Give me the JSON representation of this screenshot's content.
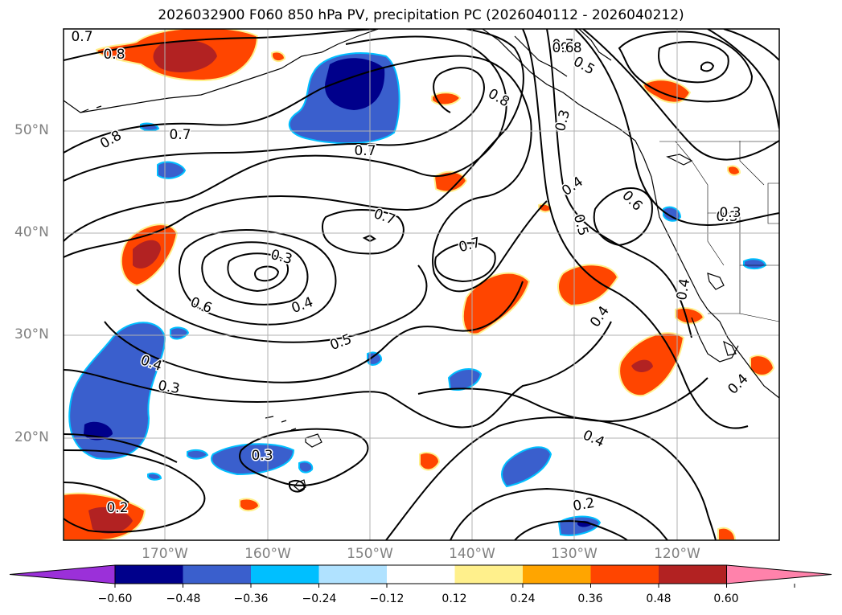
{
  "title": "2026032900 F060 850 hPa PV, precipitation PC (2026040112 - 2026040212)",
  "latitude_labels": [
    "50°N",
    "40°N",
    "30°N",
    "20°N"
  ],
  "longitude_labels": [
    "170°W",
    "160°W",
    "150°W",
    "140°W",
    "130°W",
    "120°W"
  ],
  "contour_labels": [
    "0.7",
    "0.8",
    "0.8",
    "0.7",
    "0.8",
    "0.7",
    "0.8",
    "0.7",
    "0.6",
    "0.5",
    "0.3",
    "0.4",
    "0.5",
    "0.6",
    "0.3",
    "0.4",
    "0.7",
    "0.7",
    "0.3",
    "0.4",
    "0.6",
    "0.5",
    "0.4",
    "0.3",
    "0.3",
    "0.4",
    "0.4",
    "0.4",
    "0.2",
    "0.2",
    "0.3",
    "0.8",
    "0.7",
    "0.5",
    "0.4"
  ],
  "colorbar": {
    "ticks": [
      "−0.60",
      "−0.48",
      "−0.36",
      "−0.24",
      "−0.12",
      "0.12",
      "0.24",
      "0.36",
      "0.48",
      "0.60"
    ],
    "colors": [
      "#9b30d9",
      "#00008b",
      "#3a5fcd",
      "#00bfff",
      "#b0e2ff",
      "#ffffff",
      "#fff08c",
      "#ffa500",
      "#ff4500",
      "#b22222",
      "#ff82ab"
    ]
  },
  "fill_colors": {
    "neg_strong": "#00008b",
    "neg": "#3a5fcd",
    "neg_light": "#00bfff",
    "pos_light": "#fff08c",
    "pos": "#ff4500",
    "pos_strong": "#b22222"
  }
}
